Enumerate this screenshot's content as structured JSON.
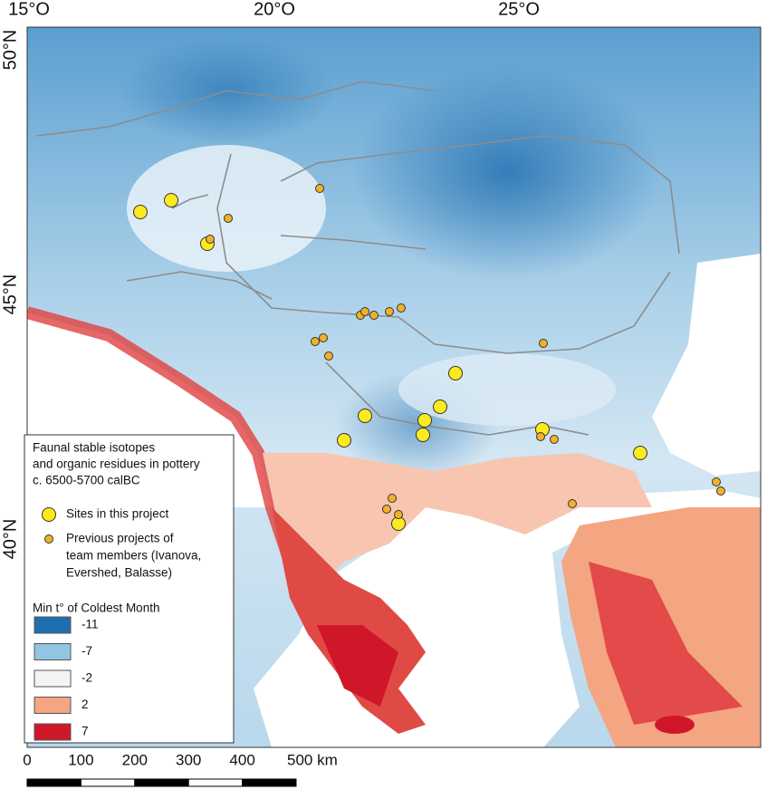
{
  "map": {
    "lon_labels": [
      "15°O",
      "20°O",
      "25°O"
    ],
    "lat_labels": [
      "50°N",
      "45°N",
      "40°N"
    ],
    "legend": {
      "title_lines": [
        "Faunal stable isotopes",
        "and organic residues in pottery",
        "c. 6500-5700 calBC"
      ],
      "sites": "Sites in this project",
      "previous_lines": [
        "Previous projects of",
        "team members (Ivanova,",
        "Evershed, Balasse)"
      ],
      "scale_title": "Min t° of Coldest Month",
      "classes": [
        {
          "value": -11,
          "color": "#1f6eb0"
        },
        {
          "value": -7,
          "color": "#92c5e2"
        },
        {
          "value": -2,
          "color": "#f4f4f4"
        },
        {
          "value": 2,
          "color": "#f4a582"
        },
        {
          "value": 7,
          "color": "#d0172a"
        }
      ]
    },
    "scale_bar": [
      "0",
      "100",
      "200",
      "300",
      "400",
      "500 km"
    ]
  }
}
